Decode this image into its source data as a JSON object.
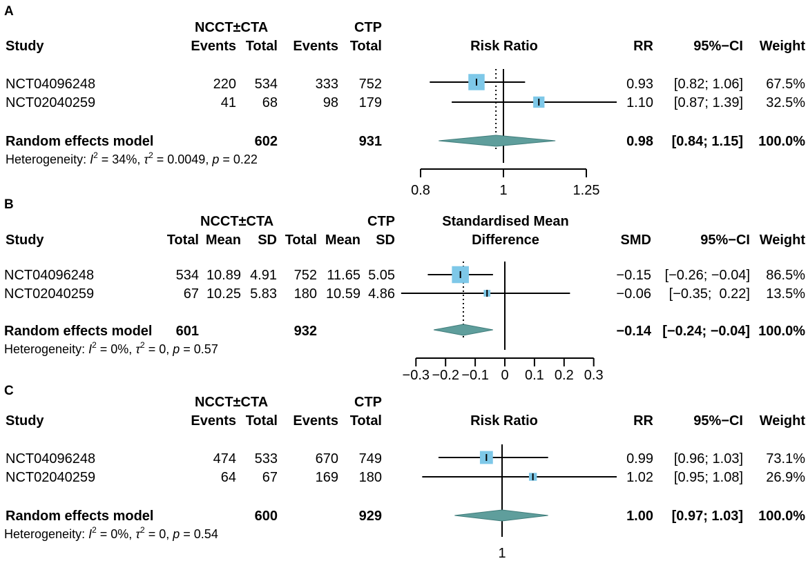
{
  "panelA": {
    "letter": "A",
    "group1": "NCCT±CTA",
    "group2": "CTP",
    "headers": {
      "study": "Study",
      "events1": "Events",
      "total1": "Total",
      "events2": "Events",
      "total2": "Total",
      "plot": "Risk Ratio",
      "est": "RR",
      "ci": "95%−CI",
      "weight": "Weight"
    },
    "rows": [
      {
        "study": "NCT04096248",
        "c1": "220",
        "c2": "534",
        "c3": "333",
        "c4": "752",
        "est": "0.93",
        "ci": "[0.82; 1.06]",
        "weight": "67.5%"
      },
      {
        "study": "NCT02040259",
        "c1": "41",
        "c2": "68",
        "c3": "98",
        "c4": "179",
        "est": "1.10",
        "ci": "[0.87; 1.39]",
        "weight": "32.5%"
      }
    ],
    "pooled": {
      "label": "Random effects model",
      "total1": "602",
      "total2": "931",
      "est": "0.98",
      "ci": "[0.84; 1.15]",
      "weight": "100.0%"
    },
    "het": {
      "pre": "Heterogeneity: ",
      "I": "I",
      "sup": "2",
      "i2": " = 34%,  ",
      "tau": "τ",
      "tsup": "2",
      "t2": " = 0.0049, ",
      "p": "p",
      "pval": " = 0.22"
    },
    "ticks": [
      "0.8",
      "1",
      "1.25"
    ]
  },
  "panelB": {
    "letter": "B",
    "group1": "NCCT±CTA",
    "group2": "CTP",
    "headers": {
      "study": "Study",
      "total1": "Total",
      "mean1": "Mean",
      "sd1": "SD",
      "total2": "Total",
      "mean2": "Mean",
      "sd2": "SD",
      "plot1": "Standardised Mean",
      "plot2": "Difference",
      "est": "SMD",
      "ci": "95%−CI",
      "weight": "Weight"
    },
    "rows": [
      {
        "study": "NCT04096248",
        "c1": "534",
        "c2": "10.89",
        "c3": "4.91",
        "c4": "752",
        "c5": "11.65",
        "c6": "5.05",
        "est": "−0.15",
        "ci": "[−0.26; −0.04]",
        "weight": "86.5%"
      },
      {
        "study": "NCT02040259",
        "c1": "67",
        "c2": "10.25",
        "c3": "5.83",
        "c4": "180",
        "c5": "10.59",
        "c6": "4.86",
        "est": "−0.06",
        "ci": "[−0.35;  0.22]",
        "weight": "13.5%"
      }
    ],
    "pooled": {
      "label": "Random effects model",
      "total1": "601",
      "total2": "932",
      "est": "−0.14",
      "ci": "[−0.24; −0.04]",
      "weight": "100.0%"
    },
    "het": {
      "pre": "Heterogeneity: ",
      "I": "I",
      "sup": "2",
      "i2": " = 0%,  ",
      "tau": "τ",
      "tsup": "2",
      "t2": " = 0, ",
      "p": "p",
      "pval": " = 0.57"
    },
    "ticks": [
      "−0.3",
      "−0.2",
      "−0.1",
      "0",
      "0.1",
      "0.2",
      "0.3"
    ]
  },
  "panelC": {
    "letter": "C",
    "group1": "NCCT±CTA",
    "group2": "CTP",
    "headers": {
      "study": "Study",
      "events1": "Events",
      "total1": "Total",
      "events2": "Events",
      "total2": "Total",
      "plot": "Risk Ratio",
      "est": "RR",
      "ci": "95%−CI",
      "weight": "Weight"
    },
    "rows": [
      {
        "study": "NCT04096248",
        "c1": "474",
        "c2": "533",
        "c3": "670",
        "c4": "749",
        "est": "0.99",
        "ci": "[0.96; 1.03]",
        "weight": "73.1%"
      },
      {
        "study": "NCT02040259",
        "c1": "64",
        "c2": "67",
        "c3": "169",
        "c4": "180",
        "est": "1.02",
        "ci": "[0.95; 1.08]",
        "weight": "26.9%"
      }
    ],
    "pooled": {
      "label": "Random effects model",
      "total1": "600",
      "total2": "929",
      "est": "1.00",
      "ci": "[0.97; 1.03]",
      "weight": "100.0%"
    },
    "het": {
      "pre": "Heterogeneity: ",
      "I": "I",
      "sup": "2",
      "i2": " = 0%,  ",
      "tau": "τ",
      "tsup": "2",
      "t2": " = 0, ",
      "p": "p",
      "pval": " = 0.54"
    },
    "ticks": [
      "1"
    ]
  },
  "colors": {
    "square": "#7ec8e8",
    "diamond": "#5f9e9c",
    "line": "#000000"
  },
  "chart_data": [
    {
      "type": "forest",
      "title": "A",
      "measure": "Risk Ratio",
      "scale": "log",
      "xlim": [
        0.8,
        1.25
      ],
      "ticks": [
        0.8,
        1,
        1.25
      ],
      "studies": [
        {
          "name": "NCT04096248",
          "est": 0.93,
          "lo": 0.82,
          "hi": 1.06,
          "weight": 67.5
        },
        {
          "name": "NCT02040259",
          "est": 1.1,
          "lo": 0.87,
          "hi": 1.39,
          "weight": 32.5
        }
      ],
      "pooled": {
        "est": 0.98,
        "lo": 0.84,
        "hi": 1.15
      },
      "null": 1
    },
    {
      "type": "forest",
      "title": "B",
      "measure": "Standardised Mean Difference",
      "scale": "linear",
      "xlim": [
        -0.3,
        0.3
      ],
      "ticks": [
        -0.3,
        -0.2,
        -0.1,
        0,
        0.1,
        0.2,
        0.3
      ],
      "studies": [
        {
          "name": "NCT04096248",
          "est": -0.15,
          "lo": -0.26,
          "hi": -0.04,
          "weight": 86.5
        },
        {
          "name": "NCT02040259",
          "est": -0.06,
          "lo": -0.35,
          "hi": 0.22,
          "weight": 13.5
        }
      ],
      "pooled": {
        "est": -0.14,
        "lo": -0.24,
        "hi": -0.04
      },
      "null": 0
    },
    {
      "type": "forest",
      "title": "C",
      "measure": "Risk Ratio",
      "scale": "log",
      "ticks": [
        1
      ],
      "studies": [
        {
          "name": "NCT04096248",
          "est": 0.99,
          "lo": 0.96,
          "hi": 1.03,
          "weight": 73.1
        },
        {
          "name": "NCT02040259",
          "est": 1.02,
          "lo": 0.95,
          "hi": 1.08,
          "weight": 26.9
        }
      ],
      "pooled": {
        "est": 1.0,
        "lo": 0.97,
        "hi": 1.03
      },
      "null": 1
    }
  ]
}
